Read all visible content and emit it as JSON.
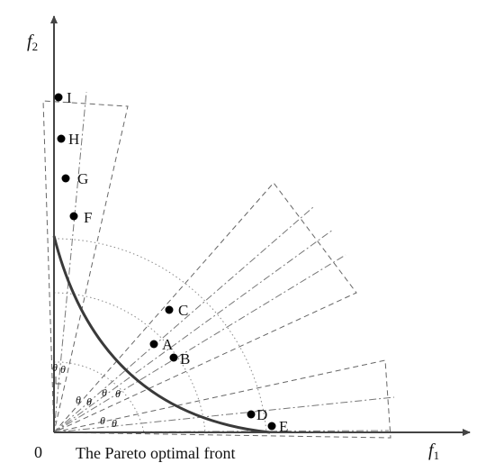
{
  "axes": {
    "x_label": "f",
    "x_sub": "1",
    "y_label": "f",
    "y_sub": "2",
    "origin": "0"
  },
  "caption": "The Pareto optimal front",
  "points": [
    "A",
    "B",
    "C",
    "D",
    "E",
    "F",
    "G",
    "H",
    "I"
  ],
  "angle_symbol": "θ"
}
